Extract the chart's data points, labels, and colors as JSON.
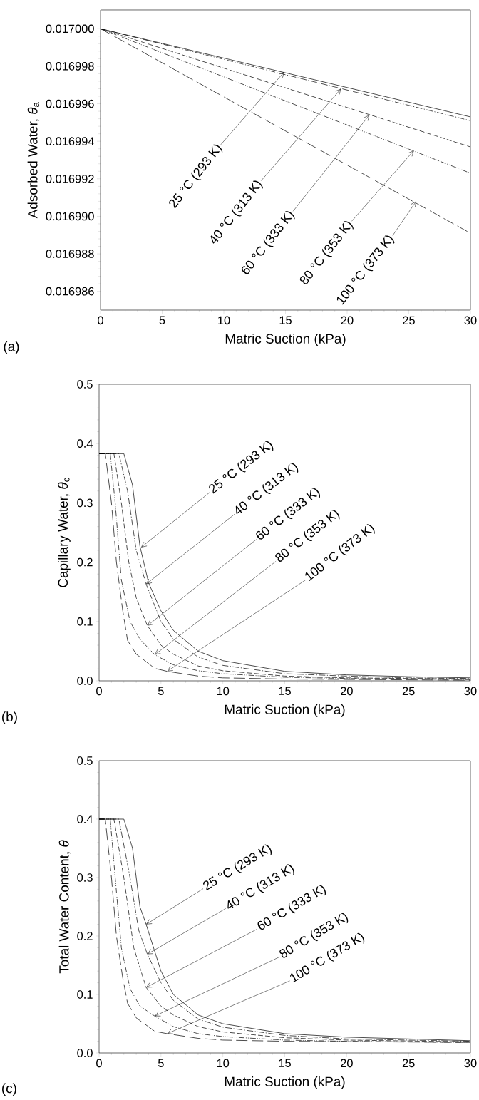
{
  "chart_data": [
    {
      "type": "line",
      "xlabel": "Matric Suction (kPa)",
      "ylabel": "Adsorbed Water, *θ*$_{a}$",
      "xlim": [
        0,
        30
      ],
      "ylim": [
        0.016985,
        0.017001
      ],
      "xticks": [
        0,
        5,
        10,
        15,
        20,
        25,
        30
      ],
      "yticks": [
        {
          "value": 0.016986,
          "label": "0.016986"
        },
        {
          "value": 0.016988,
          "label": "0.016988"
        },
        {
          "value": 0.01699,
          "label": "0.016990"
        },
        {
          "value": 0.016992,
          "label": "0.016992"
        },
        {
          "value": 0.016994,
          "label": "0.016994"
        },
        {
          "value": 0.016996,
          "label": "0.016996"
        },
        {
          "value": 0.016998,
          "label": "0.016998"
        },
        {
          "value": 0.017,
          "label": "0.017000"
        }
      ],
      "series": [
        {
          "color": "#000000",
          "line_style": "solid",
          "x": [
            0,
            30
          ],
          "values": [
            0.017,
            0.0169953
          ]
        },
        {
          "color": "#000000",
          "line_style": "dashdot",
          "x": [
            0,
            30
          ],
          "values": [
            0.017,
            0.0169951
          ]
        },
        {
          "color": "#000000",
          "line_style": "dashed",
          "x": [
            0,
            30
          ],
          "values": [
            0.017,
            0.0169937
          ]
        },
        {
          "color": "#000000",
          "line_style": "dashdotdot",
          "x": [
            0,
            30
          ],
          "values": [
            0.017,
            0.0169923
          ]
        },
        {
          "color": "#000000",
          "line_style": "longdash",
          "x": [
            0,
            30
          ],
          "values": [
            0.017,
            0.0169891
          ]
        }
      ],
      "annotations": [
        "(a)",
        {
          "text": "25 °C (293 K)",
          "x": 14.9,
          "y": 0.0169977
        },
        {
          "text": "40 °C (313 K)",
          "x": 19.5,
          "y": 0.0169968
        },
        {
          "text": "60 °C (333 K)",
          "x": 21.8,
          "y": 0.0169954
        },
        {
          "text": "80 °C (353 K)",
          "x": 25.4,
          "y": 0.0169935
        },
        {
          "text": "100 °C (373 K)",
          "x": 25.6,
          "y": 0.0169908
        }
      ]
    },
    {
      "type": "line",
      "xlabel": "Matric Suction (kPa)",
      "ylabel": "Capillary Water, *θ*$_{c}$",
      "xlim": [
        0,
        30
      ],
      "ylim": [
        0,
        0.5
      ],
      "xticks": [
        0,
        5,
        10,
        15,
        20,
        25,
        30
      ],
      "yticks": [
        {
          "value": 0,
          "label": "0.0"
        },
        0.1,
        0.2,
        0.3,
        0.4,
        0.5
      ],
      "series": [
        {
          "color": "#000000",
          "line_style": "solid",
          "x": [
            0,
            2,
            2.7,
            3.3,
            4,
            5,
            6,
            8,
            10,
            15,
            20,
            25,
            30
          ],
          "values": [
            0.383,
            0.383,
            0.33,
            0.227,
            0.165,
            0.118,
            0.085,
            0.05,
            0.034,
            0.016,
            0.01,
            0.007,
            0.005
          ]
        },
        {
          "color": "#000000",
          "line_style": "dashdot",
          "x": [
            0,
            1.6,
            2.3,
            3,
            3.8,
            5,
            6,
            8,
            10,
            15,
            20,
            25,
            30
          ],
          "values": [
            0.383,
            0.383,
            0.32,
            0.22,
            0.163,
            0.1,
            0.07,
            0.04,
            0.026,
            0.012,
            0.008,
            0.005,
            0.004
          ]
        },
        {
          "color": "#000000",
          "line_style": "dashed",
          "x": [
            0,
            1.2,
            1.8,
            2.4,
            3,
            3.9,
            5,
            6,
            8,
            10,
            15,
            20,
            30
          ],
          "values": [
            0.383,
            0.383,
            0.3,
            0.2,
            0.14,
            0.093,
            0.06,
            0.045,
            0.025,
            0.017,
            0.008,
            0.005,
            0.003
          ]
        },
        {
          "color": "#000000",
          "line_style": "dashdotdot",
          "x": [
            0,
            0.9,
            1.3,
            1.8,
            2.5,
            3.3,
            4.5,
            6,
            8,
            10,
            15,
            20,
            30
          ],
          "values": [
            0.383,
            0.383,
            0.3,
            0.17,
            0.1,
            0.07,
            0.044,
            0.027,
            0.017,
            0.012,
            0.006,
            0.004,
            0.002
          ]
        },
        {
          "color": "#000000",
          "line_style": "longdash",
          "x": [
            0,
            0.5,
            1,
            1.4,
            1.9,
            2.3,
            3,
            4.5,
            5.5,
            8,
            10,
            15,
            30
          ],
          "values": [
            0.383,
            0.383,
            0.3,
            0.2,
            0.12,
            0.068,
            0.045,
            0.021,
            0.016,
            0.008,
            0.005,
            0.003,
            0.001
          ]
        }
      ],
      "annotations": [
        "(b)",
        {
          "text": "25 °C (293 K)",
          "x": 3.4,
          "y": 0.225
        },
        {
          "text": "40 °C (313 K)",
          "x": 3.8,
          "y": 0.163
        },
        {
          "text": "60 °C (333 K)",
          "x": 3.9,
          "y": 0.093
        },
        {
          "text": "80 °C (353 K)",
          "x": 4.5,
          "y": 0.044
        },
        {
          "text": "100 °C (373 K)",
          "x": 5.5,
          "y": 0.016
        }
      ]
    },
    {
      "type": "line",
      "xlabel": "Matric Suction (kPa)",
      "ylabel": "Total Water Content, *θ*",
      "xlim": [
        0,
        30
      ],
      "ylim": [
        0,
        0.5
      ],
      "xticks": [
        0,
        5,
        10,
        15,
        20,
        25,
        30
      ],
      "yticks": [
        {
          "value": 0,
          "label": "0.0"
        },
        0.1,
        0.2,
        0.3,
        0.4,
        0.5
      ],
      "series": [
        {
          "color": "#000000",
          "line_style": "solid",
          "x": [
            0,
            2,
            2.7,
            3.3,
            3.8,
            5,
            6,
            8,
            10,
            15,
            20,
            25,
            30
          ],
          "values": [
            0.4,
            0.4,
            0.35,
            0.25,
            0.22,
            0.14,
            0.1,
            0.065,
            0.05,
            0.033,
            0.027,
            0.024,
            0.021
          ]
        },
        {
          "color": "#000000",
          "line_style": "dashdot",
          "x": [
            0,
            1.6,
            2.5,
            3.2,
            3.9,
            5,
            6,
            8,
            10,
            15,
            20,
            30
          ],
          "values": [
            0.4,
            0.4,
            0.3,
            0.21,
            0.169,
            0.12,
            0.09,
            0.058,
            0.044,
            0.03,
            0.024,
            0.02
          ]
        },
        {
          "color": "#000000",
          "line_style": "dashed",
          "x": [
            0,
            1.2,
            2,
            2.8,
            3.8,
            5,
            6,
            8,
            10,
            15,
            20,
            30
          ],
          "values": [
            0.4,
            0.4,
            0.3,
            0.18,
            0.112,
            0.08,
            0.065,
            0.045,
            0.036,
            0.026,
            0.022,
            0.019
          ]
        },
        {
          "color": "#000000",
          "line_style": "dashdotdot",
          "x": [
            0,
            0.9,
            1.3,
            1.8,
            2.5,
            3.3,
            4.5,
            6,
            8,
            10,
            15,
            20,
            30
          ],
          "values": [
            0.4,
            0.4,
            0.3,
            0.18,
            0.11,
            0.08,
            0.063,
            0.045,
            0.033,
            0.028,
            0.022,
            0.02,
            0.018
          ]
        },
        {
          "color": "#000000",
          "line_style": "longdash",
          "x": [
            0,
            0.5,
            1,
            1.4,
            1.9,
            2.3,
            3,
            4.5,
            5.5,
            8,
            10,
            15,
            30
          ],
          "values": [
            0.4,
            0.4,
            0.3,
            0.2,
            0.13,
            0.085,
            0.06,
            0.037,
            0.033,
            0.025,
            0.022,
            0.02,
            0.018
          ]
        }
      ],
      "annotations": [
        "(c)",
        {
          "text": "25 °C (293 K)",
          "x": 3.8,
          "y": 0.22
        },
        {
          "text": "40 °C (313 K)",
          "x": 3.9,
          "y": 0.169
        },
        {
          "text": "60 °C (333 K)",
          "x": 3.8,
          "y": 0.112
        },
        {
          "text": "80 °C (353 K)",
          "x": 4.5,
          "y": 0.063
        },
        {
          "text": "100 °C (373 K)",
          "x": 5.5,
          "y": 0.033
        }
      ]
    }
  ]
}
